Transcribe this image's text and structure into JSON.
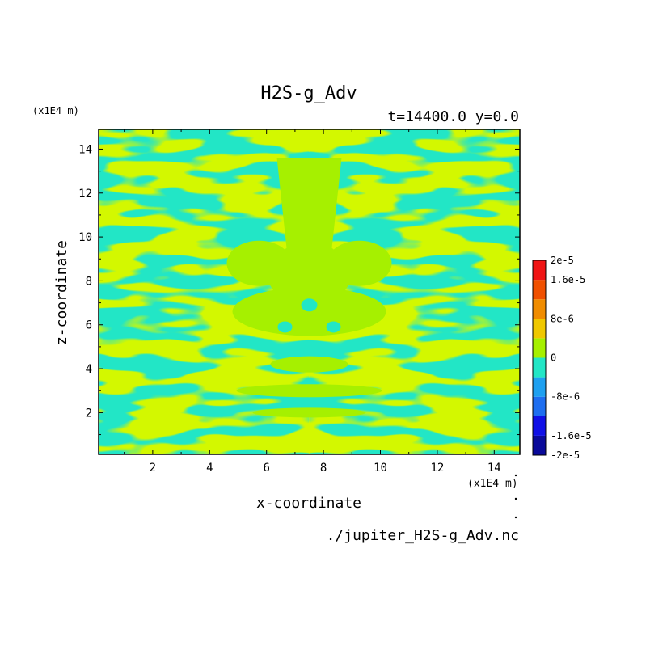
{
  "chart_data": {
    "type": "heatmap",
    "title": "H2S-g_Adv",
    "subtitle": "t=14400.0 y=0.0",
    "xlabel": "x-coordinate",
    "ylabel": "z-coordinate",
    "x_unit": "(x1E4 m)",
    "z_unit": "(x1E4 m)",
    "xlim": [
      0.1,
      14.9
    ],
    "ylim": [
      0.1,
      14.9
    ],
    "x_ticks": [
      "2",
      "4",
      "6",
      "8",
      "10",
      "12",
      "14"
    ],
    "y_ticks": [
      "2",
      "4",
      "6",
      "8",
      "10",
      "12",
      "14"
    ],
    "x_tick_values": [
      2,
      4,
      6,
      8,
      10,
      12,
      14
    ],
    "y_tick_values": [
      2,
      4,
      6,
      8,
      10,
      12,
      14
    ],
    "filename": "./jupiter_H2S-g_Adv.nc",
    "colorbar": {
      "labels": [
        "2e-5",
        "1.6e-5",
        "8e-6",
        "0",
        "-8e-6",
        "-1.6e-5",
        "-2e-5"
      ],
      "label_values": [
        2e-05,
        1.6e-05,
        8e-06,
        0,
        -8e-06,
        -1.6e-05,
        -2e-05
      ],
      "levels": [
        -2e-05,
        -1.6e-05,
        -1.2e-05,
        -8e-06,
        -4e-06,
        0,
        4e-06,
        8e-06,
        1.2e-05,
        1.6e-05,
        2e-05
      ],
      "colors": [
        "#0a0a9a",
        "#1010e6",
        "#1e6ef0",
        "#1ea0f0",
        "#22e6c6",
        "#a6f000",
        "#f0c800",
        "#f08c00",
        "#f05000",
        "#f01414"
      ]
    },
    "field_colors": {
      "negative": "#22e6c6",
      "positive": "#a6f000"
    }
  }
}
